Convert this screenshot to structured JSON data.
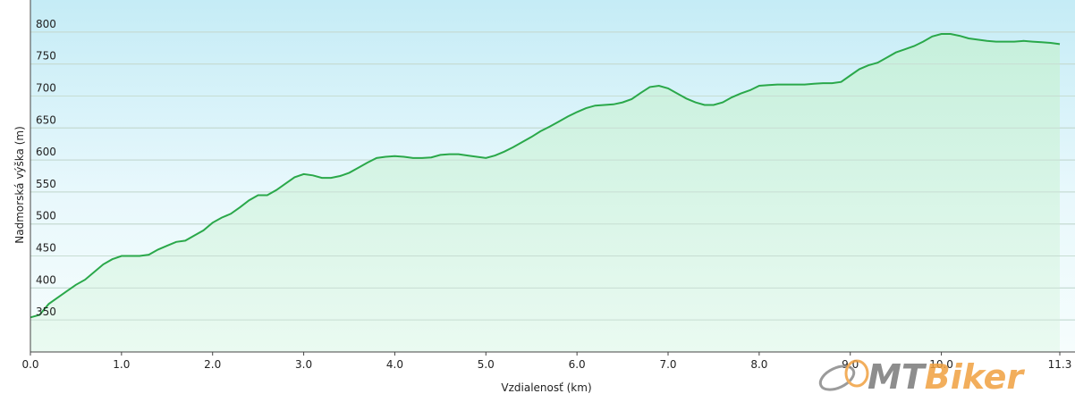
{
  "chart_data": {
    "type": "area",
    "title": "",
    "xlabel": "Vzdialenosť   (km)",
    "ylabel": "Nadmorská výška (m)",
    "xlim": [
      0,
      11.3
    ],
    "ylim": [
      300,
      850
    ],
    "x_ticks": [
      0,
      1,
      2,
      3,
      4,
      5,
      6,
      7,
      8,
      9,
      10,
      11.3
    ],
    "x_tick_labels": [
      "0.0",
      "1.0",
      "2.0",
      "3.0",
      "4.0",
      "5.0",
      "6.0",
      "7.0",
      "8.0",
      "9.0",
      "10.0",
      "11.3"
    ],
    "y_ticks": [
      350,
      400,
      450,
      500,
      550,
      600,
      650,
      700,
      750,
      800
    ],
    "grid": true,
    "legend": "none",
    "series": [
      {
        "color": "#2aa84a",
        "x": [
          0,
          0.1,
          0.2,
          0.3,
          0.4,
          0.5,
          0.6,
          0.7,
          0.8,
          0.9,
          1.0,
          1.1,
          1.2,
          1.3,
          1.4,
          1.5,
          1.6,
          1.7,
          1.8,
          1.9,
          2.0,
          2.1,
          2.2,
          2.3,
          2.4,
          2.5,
          2.6,
          2.7,
          2.8,
          2.9,
          3.0,
          3.1,
          3.2,
          3.3,
          3.4,
          3.5,
          3.6,
          3.7,
          3.8,
          3.9,
          4.0,
          4.1,
          4.2,
          4.3,
          4.4,
          4.5,
          4.6,
          4.7,
          4.8,
          4.9,
          5.0,
          5.1,
          5.2,
          5.3,
          5.4,
          5.5,
          5.6,
          5.7,
          5.8,
          5.9,
          6.0,
          6.1,
          6.2,
          6.3,
          6.4,
          6.5,
          6.6,
          6.7,
          6.8,
          6.9,
          7.0,
          7.1,
          7.2,
          7.3,
          7.4,
          7.5,
          7.6,
          7.7,
          7.8,
          7.9,
          8.0,
          8.1,
          8.2,
          8.3,
          8.4,
          8.5,
          8.6,
          8.7,
          8.8,
          8.9,
          9.0,
          9.1,
          9.2,
          9.3,
          9.4,
          9.5,
          9.6,
          9.7,
          9.8,
          9.9,
          10.0,
          10.1,
          10.2,
          10.3,
          10.4,
          10.5,
          10.6,
          10.7,
          10.8,
          10.9,
          11.0,
          11.1,
          11.2,
          11.3
        ],
        "y": [
          354,
          358,
          375,
          385,
          395,
          405,
          413,
          425,
          437,
          445,
          450,
          450,
          450,
          452,
          460,
          466,
          472,
          474,
          482,
          490,
          502,
          510,
          516,
          526,
          537,
          545,
          545,
          553,
          563,
          573,
          578,
          576,
          572,
          572,
          575,
          580,
          588,
          596,
          603,
          605,
          606,
          605,
          603,
          603,
          604,
          608,
          609,
          609,
          607,
          605,
          603,
          607,
          613,
          620,
          628,
          636,
          645,
          652,
          660,
          668,
          675,
          681,
          685,
          686,
          687,
          690,
          695,
          705,
          714,
          716,
          712,
          704,
          696,
          690,
          686,
          686,
          690,
          698,
          704,
          709,
          716,
          717,
          718,
          718,
          718,
          718,
          719,
          720,
          720,
          722,
          732,
          742,
          748,
          752,
          760,
          768,
          773,
          778,
          785,
          793,
          797,
          797,
          794,
          790,
          788,
          786,
          785,
          785,
          785,
          786,
          785,
          784,
          783,
          781
        ]
      }
    ]
  },
  "watermark": {
    "text": "MTBiker",
    "color_main": "#7a7a7a",
    "color_accent": "#f0a040"
  }
}
